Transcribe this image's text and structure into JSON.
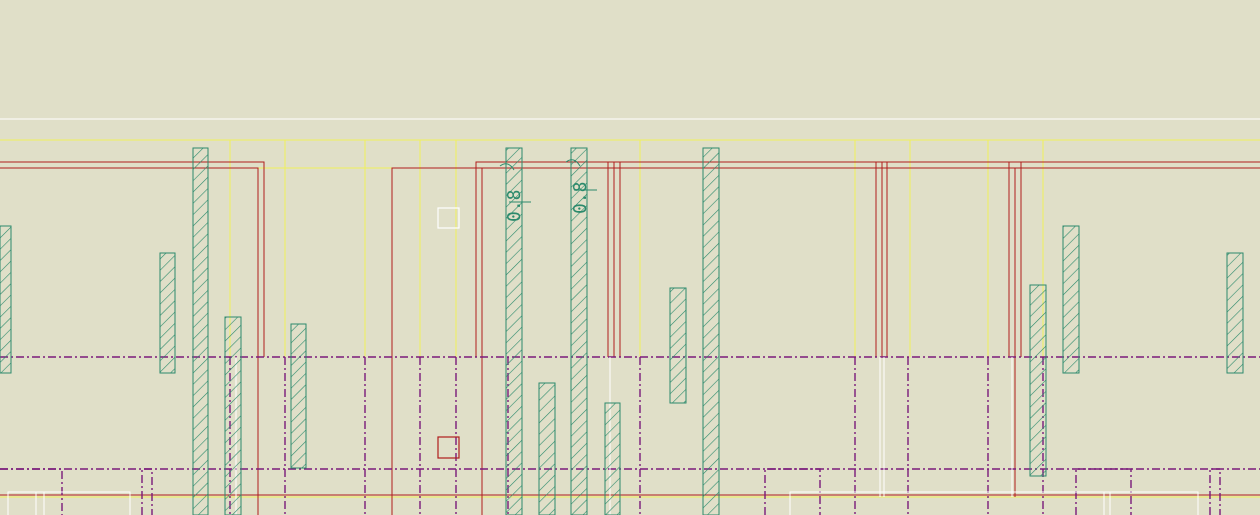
{
  "viewport": {
    "name": "cad-drawing-viewport",
    "background_color": "#e0dfc8"
  },
  "colors": {
    "outline_yellow": "#f0f05a",
    "wall_red": "#b01c1c",
    "axis_purple": "#7a1a7a",
    "dashdot_purple": "#8a1a8a",
    "pile_green": "#2b8a6c",
    "white_line": "#ffffff"
  },
  "labels": {
    "pile_label_1": "0.8",
    "pile_label_2": "0.8"
  }
}
